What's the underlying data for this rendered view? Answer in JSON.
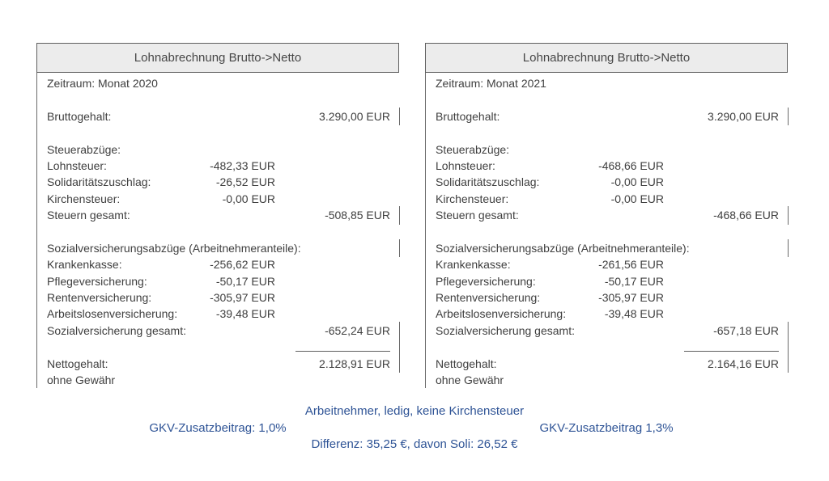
{
  "colors": {
    "accent_blue": "#2F5496",
    "header_bg": "#ececec",
    "border_gray": "#5f5f5f",
    "text_gray": "#3f3f3f"
  },
  "panels": [
    {
      "title": "Lohnabrechnung Brutto->Netto",
      "zeitraum": "Zeitraum: Monat 2020",
      "brutto_label": "Bruttogehalt:",
      "brutto_value": "3.290,00 EUR",
      "tax_section_label": "Steuerabzüge:",
      "tax_rows": [
        {
          "label": "Lohnsteuer:",
          "value": "-482,33 EUR"
        },
        {
          "label": "Solidaritätszuschlag:",
          "value": "-26,52 EUR"
        },
        {
          "label": "Kirchensteuer:",
          "value": "-0,00 EUR"
        }
      ],
      "tax_total_label": "Steuern gesamt:",
      "tax_total_value": "-508,85 EUR",
      "social_section_label": "Sozialversicherungsabzüge (Arbeitnehmeranteile):",
      "social_rows": [
        {
          "label": "Krankenkasse:",
          "value": "-256,62 EUR"
        },
        {
          "label": "Pflegeversicherung:",
          "value": "-50,17 EUR"
        },
        {
          "label": "Rentenversicherung:",
          "value": "-305,97 EUR"
        },
        {
          "label": "Arbeitslosenversicherung:",
          "value": "-39,48 EUR"
        }
      ],
      "social_total_label": "Sozialversicherung gesamt:",
      "social_total_value": "-652,24 EUR",
      "netto_label": "Nettogehalt:",
      "netto_value": "2.128,91 EUR",
      "disclaimer": "ohne Gewähr"
    },
    {
      "title": "Lohnabrechnung Brutto->Netto",
      "zeitraum": "Zeitraum: Monat 2021",
      "brutto_label": "Bruttogehalt:",
      "brutto_value": "3.290,00 EUR",
      "tax_section_label": "Steuerabzüge:",
      "tax_rows": [
        {
          "label": "Lohnsteuer:",
          "value": "-468,66 EUR"
        },
        {
          "label": "Solidaritätszuschlag:",
          "value": "-0,00 EUR"
        },
        {
          "label": "Kirchensteuer:",
          "value": "-0,00 EUR"
        }
      ],
      "tax_total_label": "Steuern gesamt:",
      "tax_total_value": "-468,66 EUR",
      "social_section_label": "Sozialversicherungsabzüge (Arbeitnehmeranteile):",
      "social_rows": [
        {
          "label": "Krankenkasse:",
          "value": "-261,56 EUR"
        },
        {
          "label": "Pflegeversicherung:",
          "value": "-50,17 EUR"
        },
        {
          "label": "Rentenversicherung:",
          "value": "-305,97 EUR"
        },
        {
          "label": "Arbeitslosenversicherung:",
          "value": "-39,48 EUR"
        }
      ],
      "social_total_label": "Sozialversicherung gesamt:",
      "social_total_value": "-657,18 EUR",
      "netto_label": "Nettogehalt:",
      "netto_value": "2.164,16 EUR",
      "disclaimer": "ohne Gewähr"
    }
  ],
  "footer": {
    "line1": "Arbeitnehmer, ledig, keine Kirchensteuer",
    "note_2020": "GKV-Zusatzbeitrag: 1,0%",
    "note_2021": "GKV-Zusatzbeitrag 1,3%",
    "line3": "Differenz: 35,25 €, davon Soli: 26,52 €"
  }
}
